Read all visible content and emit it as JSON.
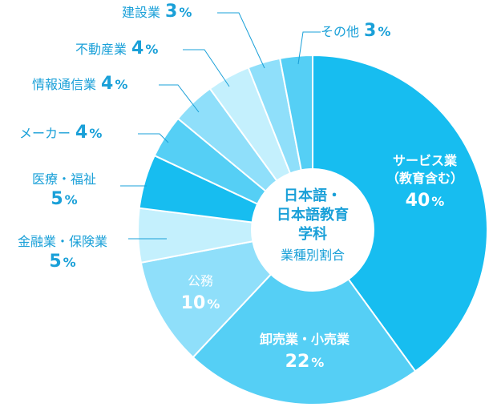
{
  "center": {
    "lines": [
      "日本語・",
      "日本語教育",
      "学科"
    ],
    "subtitle": "業種別割合"
  },
  "percent_unit": "%",
  "chart_data": {
    "type": "pie",
    "title": "日本語・日本語教育学科 業種別割合",
    "slices": [
      {
        "label": "サービス業（教育含む）",
        "value": 40,
        "color": "#17bdf0"
      },
      {
        "label": "卸売業・小売業",
        "value": 22,
        "color": "#55cff5"
      },
      {
        "label": "公務",
        "value": 10,
        "color": "#8fdffa"
      },
      {
        "label": "金融業・保険業",
        "value": 5,
        "color": "#c4f0fd"
      },
      {
        "label": "医療・福祉",
        "value": 5,
        "color": "#17bdf0"
      },
      {
        "label": "メーカー",
        "value": 4,
        "color": "#55cff5"
      },
      {
        "label": "情報通信業",
        "value": 4,
        "color": "#8fdffa"
      },
      {
        "label": "不動産業",
        "value": 4,
        "color": "#c4f0fd"
      },
      {
        "label": "建設業",
        "value": 3,
        "color": "#8fdffa"
      },
      {
        "label": "その他",
        "value": 3,
        "color": "#55cff5"
      }
    ]
  },
  "labels": {
    "service_name_1": "サービス業",
    "service_name_2": "（教育含む）",
    "wholesale_name": "卸売業・小売業",
    "public_name": "公務",
    "finance_name": "金融業・保険業",
    "medical_name": "医療・福祉",
    "maker_name": "メーカー",
    "it_name": "情報通信業",
    "realestate_name": "不動産業",
    "construction_name": "建設業",
    "other_name": "その他",
    "service_value": "40",
    "wholesale_value": "22",
    "public_value": "10",
    "finance_value": "5",
    "medical_value": "5",
    "maker_value": "4",
    "it_value": "4",
    "realestate_value": "4",
    "construction_value": "3",
    "other_value": "3"
  }
}
